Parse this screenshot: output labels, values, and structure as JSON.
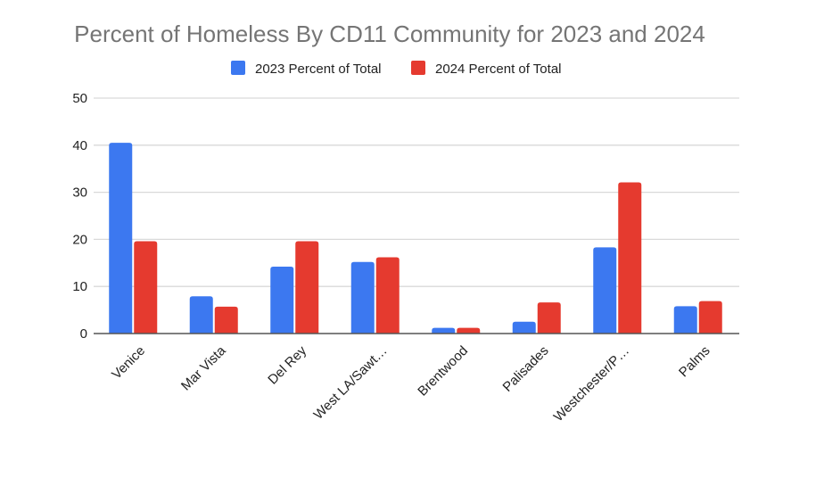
{
  "chart_data": {
    "type": "bar",
    "title": "Percent of Homeless By CD11 Community for 2023 and 2024",
    "xlabel": "",
    "ylabel": "",
    "ylim": [
      0,
      50
    ],
    "yticks": [
      0,
      10,
      20,
      30,
      40,
      50
    ],
    "grid": true,
    "legend_position": "top-center",
    "categories": [
      "Venice",
      "Mar Vista",
      "Del Rey",
      "West LA/Sawt…",
      "Brentwood",
      "Palisades",
      "Westchester/P…",
      "Palms"
    ],
    "series": [
      {
        "name": "2023 Percent of Total",
        "color": "#3c78f0",
        "values": [
          40.5,
          7.9,
          14.2,
          15.2,
          1.2,
          2.5,
          18.3,
          5.8
        ]
      },
      {
        "name": "2024 Percent of Total",
        "color": "#e53a2f",
        "values": [
          19.6,
          5.7,
          19.6,
          16.2,
          1.2,
          6.6,
          32.1,
          6.9
        ]
      }
    ]
  }
}
